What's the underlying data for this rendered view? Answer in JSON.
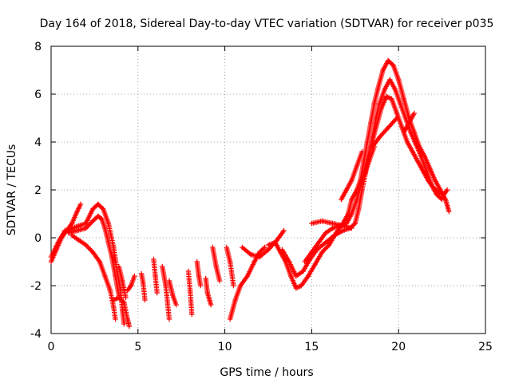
{
  "chart_data": {
    "type": "scatter",
    "title": "Day 164 of 2018, Sidereal Day-to-day VTEC variation (SDTVAR) for receiver p035",
    "xlabel": "GPS time / hours",
    "ylabel": "SDTVAR / TECUs",
    "xlim": [
      0,
      25
    ],
    "ylim": [
      -4,
      8
    ],
    "xticks": [
      "0",
      "5",
      "10",
      "15",
      "20",
      "25"
    ],
    "yticks": [
      "-4",
      "-2",
      "0",
      "2",
      "4",
      "6",
      "8"
    ],
    "grid": true,
    "marker": "+",
    "series": [
      {
        "name": "SDTVAR",
        "color": "#ff0000",
        "tracks": [
          [
            [
              0.0,
              -1.0
            ],
            [
              0.3,
              -0.5
            ],
            [
              0.6,
              0.0
            ],
            [
              0.9,
              0.3
            ],
            [
              1.2,
              0.6
            ],
            [
              1.5,
              1.1
            ],
            [
              1.7,
              1.4
            ]
          ],
          [
            [
              0.0,
              -0.8
            ],
            [
              0.4,
              -0.2
            ],
            [
              0.8,
              0.3
            ],
            [
              1.2,
              0.4
            ],
            [
              1.6,
              0.5
            ],
            [
              2.0,
              0.6
            ],
            [
              2.4,
              1.2
            ],
            [
              2.7,
              1.4
            ],
            [
              3.0,
              1.2
            ],
            [
              3.3,
              0.6
            ],
            [
              3.6,
              -0.4
            ],
            [
              3.8,
              -1.4
            ],
            [
              4.0,
              -2.2
            ],
            [
              4.1,
              -3.0
            ],
            [
              4.2,
              -3.6
            ]
          ],
          [
            [
              1.0,
              0.2
            ],
            [
              1.5,
              0.3
            ],
            [
              2.0,
              0.4
            ],
            [
              2.4,
              0.7
            ],
            [
              2.7,
              0.9
            ],
            [
              2.9,
              0.8
            ],
            [
              3.1,
              0.4
            ],
            [
              3.3,
              -0.2
            ],
            [
              3.5,
              -0.8
            ],
            [
              3.7,
              -1.6
            ],
            [
              3.9,
              -2.4
            ]
          ],
          [
            [
              1.2,
              0.1
            ],
            [
              1.6,
              -0.1
            ],
            [
              2.0,
              -0.3
            ],
            [
              2.4,
              -0.6
            ],
            [
              2.8,
              -1.0
            ],
            [
              3.1,
              -1.6
            ],
            [
              3.4,
              -2.2
            ],
            [
              3.6,
              -2.9
            ],
            [
              3.7,
              -3.4
            ]
          ],
          [
            [
              3.6,
              -2.6
            ],
            [
              3.9,
              -2.5
            ],
            [
              4.2,
              -2.7
            ],
            [
              4.4,
              -3.4
            ],
            [
              4.5,
              -3.7
            ]
          ],
          [
            [
              3.9,
              -1.2
            ],
            [
              4.1,
              -1.8
            ],
            [
              4.3,
              -2.5
            ]
          ],
          [
            [
              4.4,
              -2.2
            ],
            [
              4.6,
              -2.0
            ],
            [
              4.8,
              -1.6
            ]
          ],
          [
            [
              5.2,
              -1.5
            ],
            [
              5.3,
              -1.9
            ],
            [
              5.4,
              -2.6
            ]
          ],
          [
            [
              5.9,
              -0.9
            ],
            [
              6.0,
              -1.6
            ],
            [
              6.1,
              -2.3
            ]
          ],
          [
            [
              6.4,
              -1.2
            ],
            [
              6.6,
              -2.0
            ],
            [
              6.8,
              -3.4
            ]
          ],
          [
            [
              6.8,
              -1.8
            ],
            [
              7.0,
              -2.4
            ],
            [
              7.2,
              -2.8
            ]
          ],
          [
            [
              7.9,
              -1.4
            ],
            [
              8.0,
              -2.2
            ],
            [
              8.1,
              -3.2
            ]
          ],
          [
            [
              8.4,
              -1.0
            ],
            [
              8.5,
              -1.6
            ],
            [
              8.6,
              -2.0
            ]
          ],
          [
            [
              8.9,
              -1.7
            ],
            [
              9.0,
              -2.3
            ],
            [
              9.2,
              -2.8
            ]
          ],
          [
            [
              9.3,
              -0.4
            ],
            [
              9.5,
              -1.2
            ],
            [
              9.7,
              -1.8
            ]
          ],
          [
            [
              10.1,
              -0.4
            ],
            [
              10.3,
              -1.0
            ],
            [
              10.5,
              -2.0
            ]
          ],
          [
            [
              10.3,
              -3.4
            ],
            [
              10.6,
              -2.6
            ],
            [
              10.9,
              -2.0
            ],
            [
              11.3,
              -1.6
            ],
            [
              11.7,
              -1.0
            ],
            [
              12.0,
              -0.6
            ],
            [
              12.3,
              -0.4
            ]
          ],
          [
            [
              11.0,
              -0.4
            ],
            [
              11.5,
              -0.7
            ],
            [
              12.0,
              -0.8
            ],
            [
              12.5,
              -0.5
            ],
            [
              13.0,
              -0.1
            ],
            [
              13.4,
              0.3
            ]
          ],
          [
            [
              12.5,
              -0.3
            ],
            [
              12.9,
              -0.2
            ],
            [
              13.2,
              -0.6
            ],
            [
              13.5,
              -1.0
            ],
            [
              13.8,
              -1.6
            ],
            [
              14.1,
              -2.1
            ],
            [
              14.4,
              -2.0
            ],
            [
              14.8,
              -1.6
            ],
            [
              15.2,
              -1.1
            ],
            [
              15.6,
              -0.6
            ],
            [
              16.0,
              -0.3
            ],
            [
              16.4,
              0.2
            ],
            [
              16.8,
              0.6
            ],
            [
              17.1,
              1.0
            ],
            [
              17.3,
              1.6
            ],
            [
              17.6,
              2.0
            ],
            [
              17.8,
              2.4
            ],
            [
              18.0,
              3.2
            ],
            [
              18.2,
              4.0
            ],
            [
              18.4,
              4.8
            ],
            [
              18.6,
              5.6
            ],
            [
              18.8,
              6.2
            ],
            [
              19.1,
              7.0
            ],
            [
              19.4,
              7.4
            ],
            [
              19.7,
              7.2
            ],
            [
              20.0,
              6.6
            ],
            [
              20.3,
              5.8
            ],
            [
              20.6,
              5.0
            ],
            [
              20.9,
              4.4
            ],
            [
              21.2,
              3.8
            ],
            [
              21.5,
              3.4
            ],
            [
              21.8,
              2.9
            ],
            [
              22.1,
              2.4
            ],
            [
              22.4,
              2.0
            ],
            [
              22.7,
              1.6
            ],
            [
              22.9,
              1.1
            ]
          ],
          [
            [
              13.3,
              -0.5
            ],
            [
              13.7,
              -1.0
            ],
            [
              14.1,
              -1.6
            ],
            [
              14.5,
              -1.4
            ],
            [
              14.9,
              -0.9
            ],
            [
              15.3,
              -0.5
            ],
            [
              15.8,
              -0.2
            ],
            [
              16.3,
              0.1
            ],
            [
              16.8,
              0.3
            ],
            [
              17.2,
              0.4
            ],
            [
              17.5,
              0.6
            ],
            [
              17.7,
              1.2
            ],
            [
              17.9,
              2.0
            ],
            [
              18.1,
              2.7
            ],
            [
              18.3,
              3.4
            ],
            [
              18.5,
              4.2
            ],
            [
              18.7,
              5.0
            ],
            [
              18.9,
              5.6
            ],
            [
              19.2,
              6.2
            ],
            [
              19.5,
              6.6
            ],
            [
              19.8,
              6.2
            ],
            [
              20.1,
              5.6
            ],
            [
              20.4,
              5.0
            ],
            [
              20.7,
              4.4
            ],
            [
              21.0,
              3.9
            ],
            [
              21.3,
              3.4
            ],
            [
              21.6,
              2.8
            ],
            [
              21.9,
              2.2
            ],
            [
              22.2,
              1.8
            ],
            [
              22.5,
              1.6
            ]
          ],
          [
            [
              14.6,
              -1.0
            ],
            [
              15.0,
              -0.6
            ],
            [
              15.4,
              -0.2
            ],
            [
              15.8,
              0.2
            ],
            [
              16.2,
              0.4
            ],
            [
              16.6,
              0.5
            ],
            [
              17.0,
              0.6
            ],
            [
              17.3,
              1.0
            ],
            [
              17.6,
              1.6
            ],
            [
              17.9,
              2.4
            ],
            [
              18.1,
              3.0
            ],
            [
              18.4,
              3.8
            ],
            [
              18.7,
              4.6
            ],
            [
              19.0,
              5.4
            ],
            [
              19.3,
              5.9
            ],
            [
              19.6,
              5.8
            ],
            [
              19.9,
              5.2
            ],
            [
              20.2,
              4.6
            ],
            [
              20.5,
              4.0
            ],
            [
              20.8,
              3.6
            ],
            [
              21.1,
              3.2
            ],
            [
              21.4,
              2.8
            ],
            [
              21.7,
              2.4
            ],
            [
              22.0,
              2.1
            ],
            [
              22.3,
              1.9
            ],
            [
              22.6,
              1.8
            ],
            [
              22.8,
              2.0
            ]
          ],
          [
            [
              15.0,
              0.6
            ],
            [
              15.6,
              0.7
            ],
            [
              16.2,
              0.6
            ],
            [
              16.8,
              0.5
            ],
            [
              17.3,
              0.4
            ]
          ],
          [
            [
              16.7,
              1.6
            ],
            [
              17.0,
              2.0
            ],
            [
              17.3,
              2.4
            ],
            [
              17.6,
              3.0
            ],
            [
              17.9,
              3.6
            ]
          ],
          [
            [
              18.5,
              3.8
            ],
            [
              18.9,
              4.2
            ],
            [
              19.4,
              4.6
            ],
            [
              19.9,
              5.0
            ]
          ],
          [
            [
              18.0,
              2.6
            ],
            [
              18.3,
              3.2
            ],
            [
              18.6,
              3.8
            ]
          ],
          [
            [
              20.3,
              4.4
            ],
            [
              20.6,
              4.8
            ],
            [
              20.9,
              5.2
            ]
          ]
        ]
      }
    ]
  }
}
